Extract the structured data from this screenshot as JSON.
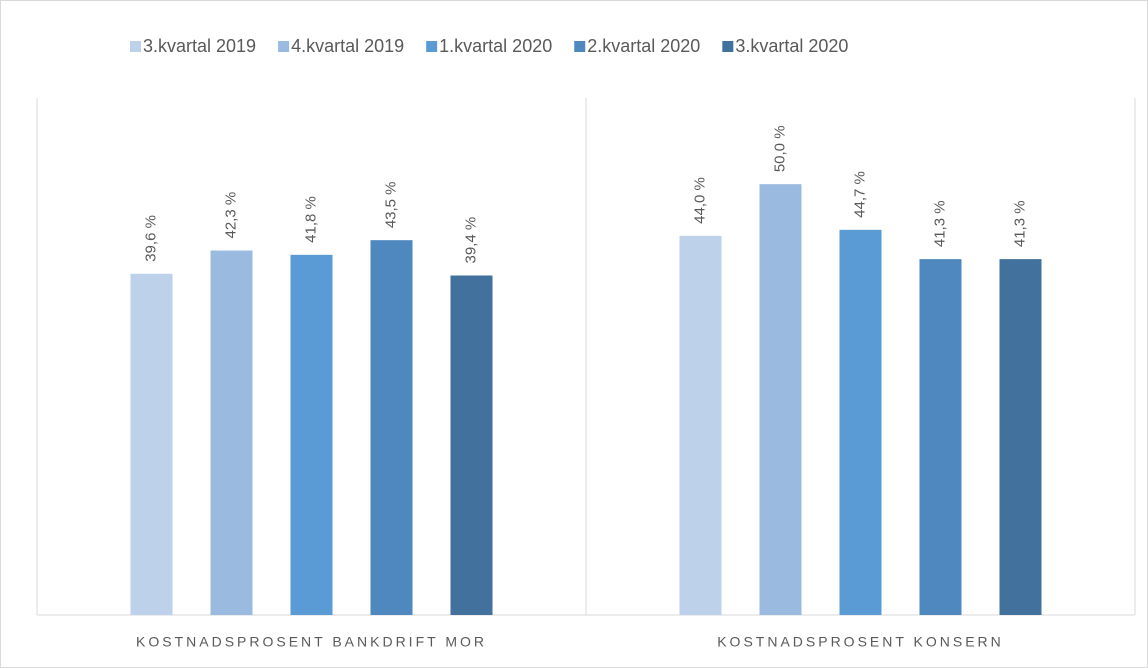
{
  "chart_data": {
    "type": "bar",
    "categories": [
      "KOSTNADSPROSENT BANKDRIFT MOR",
      "KOSTNADSPROSENT KONSERN"
    ],
    "series": [
      {
        "name": "3.kvartal 2019",
        "color": "#bdd1ea",
        "values": [
          39.6,
          44.0
        ],
        "value_labels": [
          "39,6 %",
          "44,0 %"
        ]
      },
      {
        "name": "4.kvartal 2019",
        "color": "#9bbae0",
        "values": [
          42.3,
          50.0
        ],
        "value_labels": [
          "42,3 %",
          "50,0 %"
        ]
      },
      {
        "name": "1.kvartal 2020",
        "color": "#5b9bd5",
        "values": [
          41.8,
          44.7
        ],
        "value_labels": [
          "41,8 %",
          "44,7 %"
        ]
      },
      {
        "name": "2.kvartal 2020",
        "color": "#4f88bf",
        "values": [
          43.5,
          41.3
        ],
        "value_labels": [
          "43,5 %",
          "41,3 %"
        ]
      },
      {
        "name": "3.kvartal 2020",
        "color": "#41719c",
        "values": [
          39.4,
          41.3
        ],
        "value_labels": [
          "39,4 %",
          "41,3 %"
        ]
      }
    ],
    "ylim": [
      0,
      60
    ],
    "legend": "top",
    "grid": false
  }
}
